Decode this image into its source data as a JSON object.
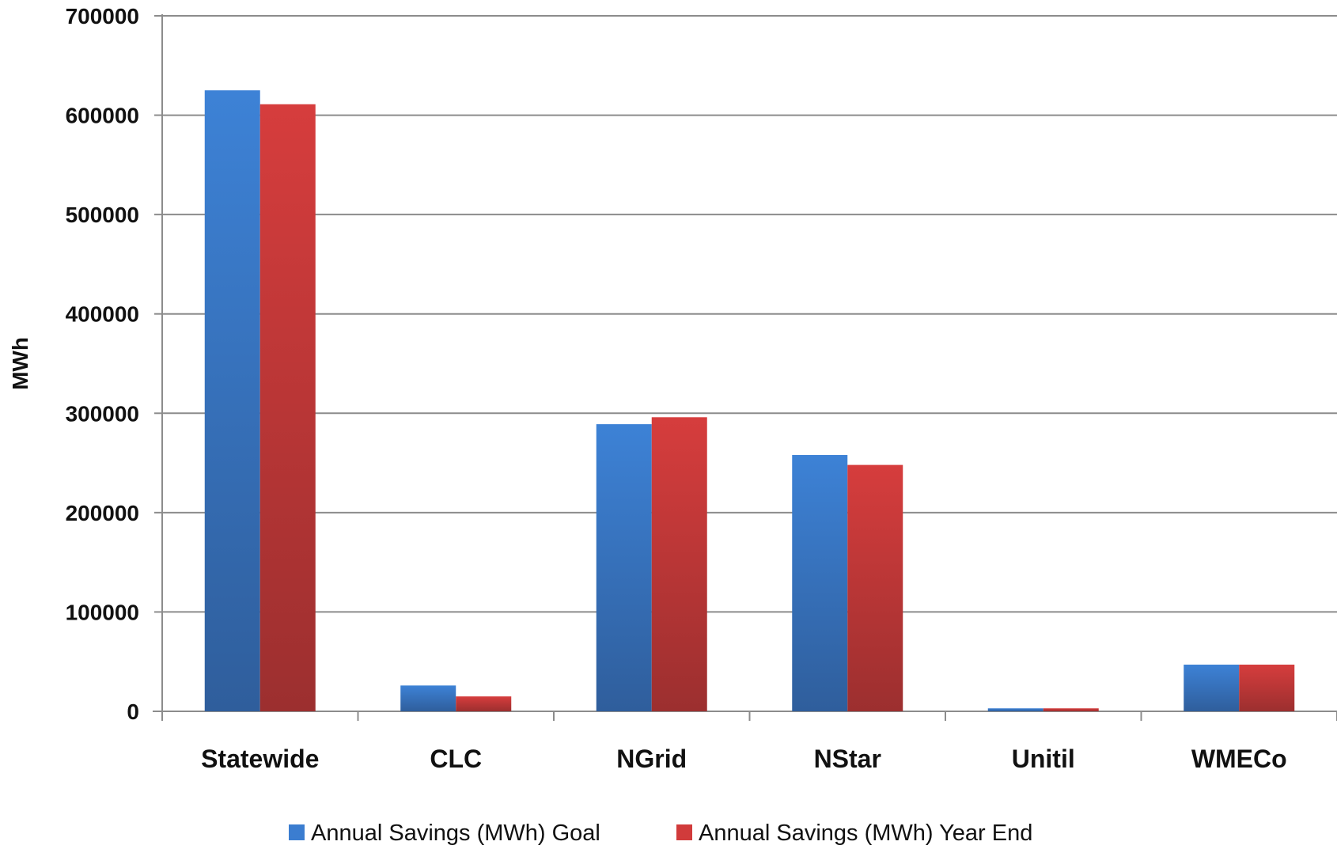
{
  "chart_data": {
    "type": "bar",
    "title": "",
    "xlabel": "",
    "ylabel": "MWh",
    "categories": [
      "Statewide",
      "CLC",
      "NGrid",
      "NStar",
      "Unitil",
      "WMECo"
    ],
    "series": [
      {
        "name": "Annual Savings (MWh) Goal",
        "color": "#3b7dd0",
        "values": [
          625000,
          26000,
          289000,
          258000,
          3000,
          47000
        ]
      },
      {
        "name": "Annual Savings (MWh) Year End",
        "color": "#d13b3b",
        "values": [
          611000,
          15000,
          296000,
          248000,
          3000,
          47000
        ]
      }
    ],
    "ylim": [
      0,
      700000
    ],
    "yticks": [
      0,
      100000,
      200000,
      300000,
      400000,
      500000,
      600000,
      700000
    ],
    "grid": true,
    "legend_position": "bottom"
  }
}
